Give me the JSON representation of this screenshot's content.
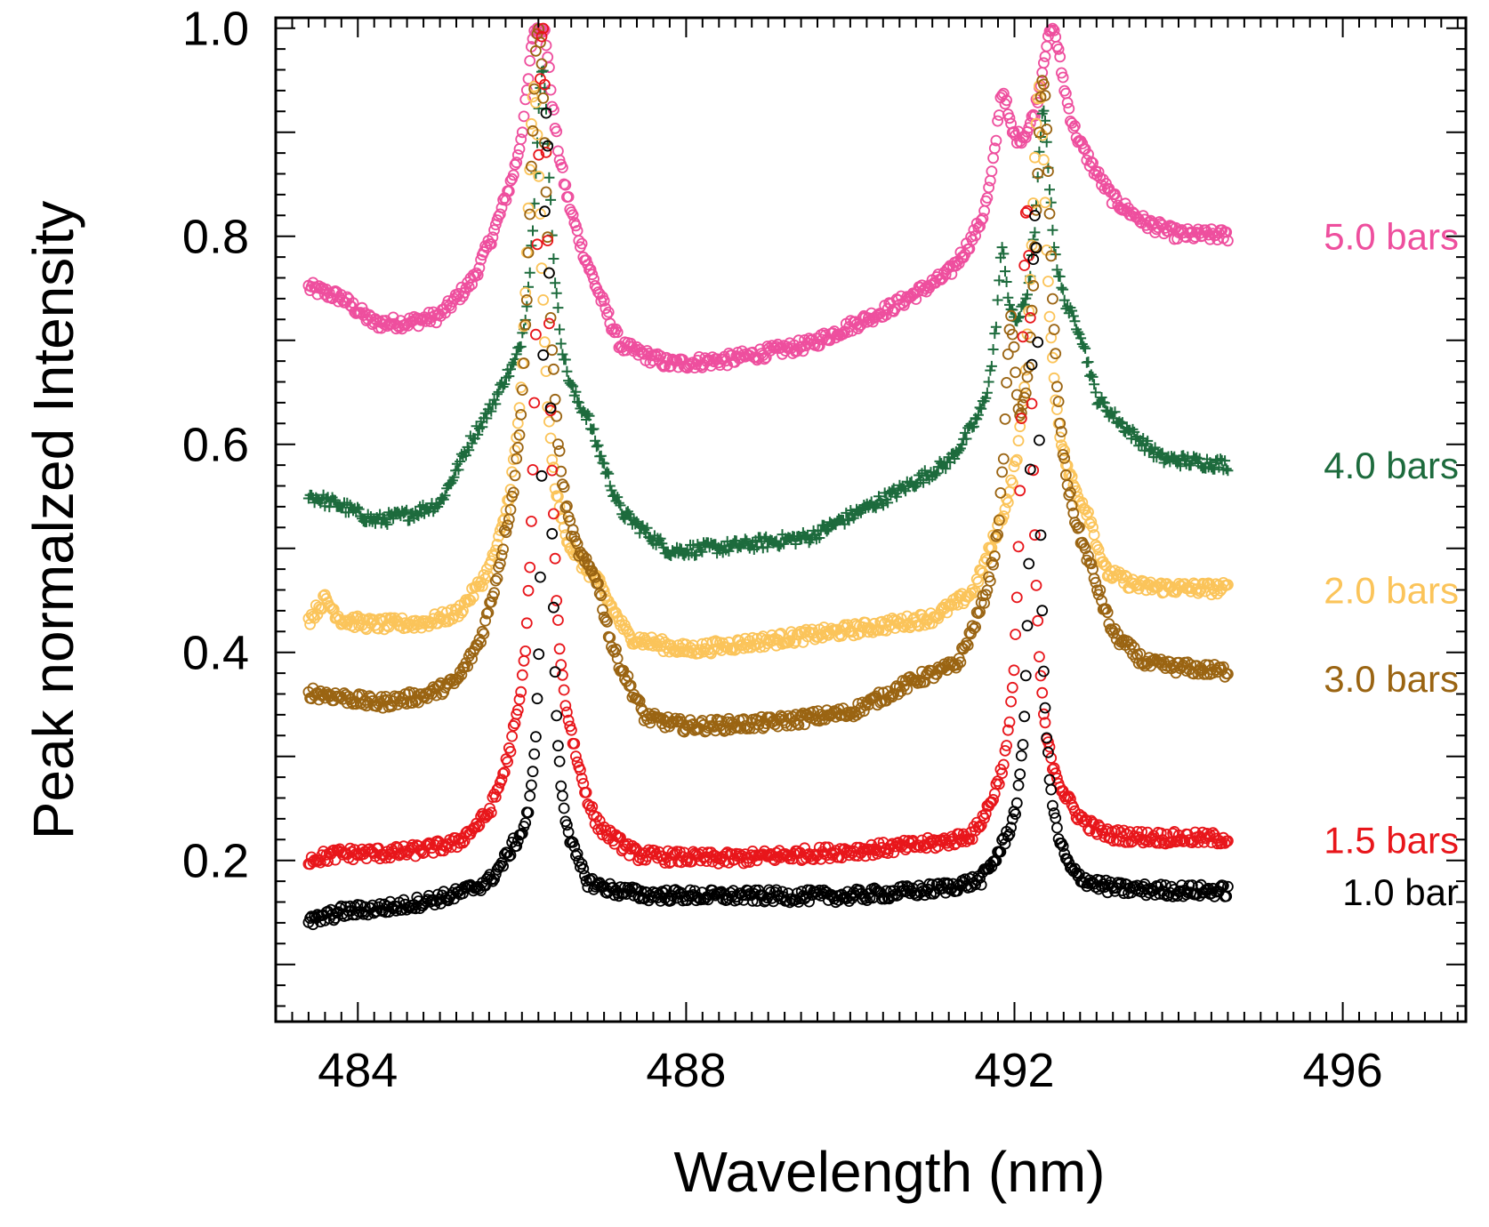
{
  "chart_data": {
    "type": "scatter",
    "title": "",
    "xlabel": "Wavelength (nm)",
    "ylabel": "Peak normalzed Intensity",
    "xlim": [
      483,
      497.5
    ],
    "ylim": [
      0.045,
      1.01
    ],
    "xticks": [
      484,
      488,
      492,
      496
    ],
    "xtick_labels": [
      "484",
      "488",
      "492",
      "496"
    ],
    "yticks": [
      0.2,
      0.4,
      0.6,
      0.8,
      1.0
    ],
    "ytick_labels": [
      "0.2",
      "0.4",
      "0.6",
      "0.8",
      "1.0"
    ],
    "grid": false,
    "series": [
      {
        "name": "5.0 bars",
        "color": "#ee4f9e",
        "marker": "circle",
        "x_start": 483.4,
        "x_end": 494.6,
        "baseline": [
          [
            483.4,
            0.75
          ],
          [
            483.8,
            0.74
          ],
          [
            484.2,
            0.715
          ],
          [
            484.6,
            0.715
          ],
          [
            485.0,
            0.72
          ],
          [
            485.4,
            0.75
          ],
          [
            485.8,
            0.81
          ],
          [
            486.3,
            0.85
          ],
          [
            486.8,
            0.76
          ],
          [
            487.2,
            0.69
          ],
          [
            487.8,
            0.675
          ],
          [
            488.5,
            0.68
          ],
          [
            489.5,
            0.695
          ],
          [
            490.5,
            0.73
          ],
          [
            491.2,
            0.76
          ],
          [
            491.6,
            0.8
          ],
          [
            491.85,
            0.84
          ],
          [
            492.05,
            0.86
          ],
          [
            492.3,
            0.87
          ],
          [
            492.6,
            0.88
          ],
          [
            492.9,
            0.86
          ],
          [
            493.2,
            0.83
          ],
          [
            493.6,
            0.81
          ],
          [
            494.0,
            0.8
          ],
          [
            494.6,
            0.8
          ]
        ],
        "peaks": [
          {
            "center": 486.2,
            "amp": 0.18,
            "width": 0.17
          },
          {
            "center": 491.85,
            "amp": 0.09,
            "width": 0.1
          },
          {
            "center": 492.45,
            "amp": 0.125,
            "width": 0.16
          }
        ],
        "label": "5.0 bars",
        "label_y": 0.8
      },
      {
        "name": "4.0 bars",
        "color": "#1d6b3d",
        "marker": "plus",
        "x_start": 483.4,
        "x_end": 494.6,
        "baseline": [
          [
            483.4,
            0.55
          ],
          [
            483.8,
            0.54
          ],
          [
            484.2,
            0.525
          ],
          [
            484.6,
            0.53
          ],
          [
            485.0,
            0.54
          ],
          [
            485.4,
            0.6
          ],
          [
            485.8,
            0.64
          ],
          [
            486.8,
            0.61
          ],
          [
            487.2,
            0.53
          ],
          [
            487.8,
            0.495
          ],
          [
            488.5,
            0.5
          ],
          [
            489.5,
            0.51
          ],
          [
            490.5,
            0.55
          ],
          [
            491.2,
            0.58
          ],
          [
            491.6,
            0.62
          ],
          [
            492.0,
            0.68
          ],
          [
            492.4,
            0.73
          ],
          [
            492.8,
            0.7
          ],
          [
            493.0,
            0.64
          ],
          [
            493.4,
            0.61
          ],
          [
            493.8,
            0.585
          ],
          [
            494.6,
            0.58
          ]
        ],
        "peaks": [
          {
            "center": 486.25,
            "amp": 0.33,
            "width": 0.13
          },
          {
            "center": 491.85,
            "amp": 0.12,
            "width": 0.08
          },
          {
            "center": 492.35,
            "amp": 0.19,
            "width": 0.1
          }
        ],
        "label": "4.0 bars",
        "label_y": 0.58
      },
      {
        "name": "2.0 bars",
        "color": "#fbc45a",
        "marker": "circle",
        "x_start": 483.4,
        "x_end": 494.6,
        "baseline": [
          [
            483.4,
            0.43
          ],
          [
            483.6,
            0.45
          ],
          [
            483.8,
            0.43
          ],
          [
            484.2,
            0.425
          ],
          [
            484.8,
            0.425
          ],
          [
            485.2,
            0.43
          ],
          [
            485.6,
            0.46
          ],
          [
            485.9,
            0.5
          ],
          [
            486.9,
            0.46
          ],
          [
            487.3,
            0.41
          ],
          [
            488.0,
            0.4
          ],
          [
            489.0,
            0.41
          ],
          [
            490.0,
            0.42
          ],
          [
            491.0,
            0.43
          ],
          [
            491.5,
            0.45
          ],
          [
            491.8,
            0.5
          ],
          [
            492.3,
            0.56
          ],
          [
            492.9,
            0.52
          ],
          [
            493.1,
            0.47
          ],
          [
            493.5,
            0.46
          ],
          [
            494.6,
            0.46
          ]
        ],
        "peaks": [
          {
            "center": 486.15,
            "amp": 0.45,
            "width": 0.12
          },
          {
            "center": 492.3,
            "amp": 0.38,
            "width": 0.12
          }
        ],
        "label": "2.0 bars",
        "label_y": 0.46
      },
      {
        "name": "3.0 bars",
        "color": "#9a6412",
        "marker": "circle",
        "x_start": 483.4,
        "x_end": 494.6,
        "baseline": [
          [
            483.4,
            0.36
          ],
          [
            483.8,
            0.355
          ],
          [
            484.2,
            0.348
          ],
          [
            484.8,
            0.352
          ],
          [
            485.2,
            0.36
          ],
          [
            485.5,
            0.39
          ],
          [
            485.8,
            0.45
          ],
          [
            486.9,
            0.45
          ],
          [
            487.1,
            0.39
          ],
          [
            487.5,
            0.33
          ],
          [
            488.0,
            0.325
          ],
          [
            489.0,
            0.33
          ],
          [
            490.0,
            0.34
          ],
          [
            490.8,
            0.37
          ],
          [
            491.3,
            0.38
          ],
          [
            491.7,
            0.44
          ],
          [
            492.3,
            0.55
          ],
          [
            492.9,
            0.47
          ],
          [
            493.2,
            0.41
          ],
          [
            493.6,
            0.385
          ],
          [
            494.6,
            0.38
          ]
        ],
        "peaks": [
          {
            "center": 486.2,
            "amp": 0.55,
            "width": 0.15
          },
          {
            "center": 491.95,
            "amp": 0.2,
            "width": 0.08
          },
          {
            "center": 492.35,
            "amp": 0.4,
            "width": 0.12
          }
        ],
        "label": "3.0 bars",
        "label_y": 0.375
      },
      {
        "name": "1.5 bars",
        "color": "#e8161b",
        "marker": "circle",
        "x_start": 483.4,
        "x_end": 494.6,
        "baseline": [
          [
            483.4,
            0.2
          ],
          [
            483.8,
            0.205
          ],
          [
            484.5,
            0.205
          ],
          [
            485.2,
            0.21
          ],
          [
            485.6,
            0.23
          ],
          [
            485.9,
            0.27
          ],
          [
            486.6,
            0.27
          ],
          [
            486.9,
            0.22
          ],
          [
            487.4,
            0.2
          ],
          [
            488.5,
            0.2
          ],
          [
            489.5,
            0.205
          ],
          [
            490.5,
            0.21
          ],
          [
            491.5,
            0.215
          ],
          [
            491.8,
            0.24
          ],
          [
            492.5,
            0.25
          ],
          [
            492.8,
            0.23
          ],
          [
            493.1,
            0.22
          ],
          [
            494.6,
            0.22
          ]
        ],
        "peaks": [
          {
            "center": 486.25,
            "amp": 0.73,
            "width": 0.1
          },
          {
            "center": 492.15,
            "amp": 0.58,
            "width": 0.09
          }
        ],
        "label": "1.5 bars",
        "label_y": 0.22
      },
      {
        "name": "1.0 bar",
        "color": "#000000",
        "marker": "circle",
        "x_start": 483.4,
        "x_end": 494.6,
        "baseline": [
          [
            483.4,
            0.14
          ],
          [
            483.8,
            0.15
          ],
          [
            484.5,
            0.155
          ],
          [
            485.2,
            0.165
          ],
          [
            485.6,
            0.175
          ],
          [
            485.9,
            0.2
          ],
          [
            486.5,
            0.2
          ],
          [
            486.8,
            0.17
          ],
          [
            487.5,
            0.165
          ],
          [
            488.5,
            0.165
          ],
          [
            490.0,
            0.165
          ],
          [
            491.0,
            0.17
          ],
          [
            491.6,
            0.175
          ],
          [
            491.9,
            0.2
          ],
          [
            492.4,
            0.2
          ],
          [
            492.7,
            0.175
          ],
          [
            493.2,
            0.17
          ],
          [
            494.6,
            0.17
          ]
        ],
        "peaks": [
          {
            "center": 486.3,
            "amp": 0.72,
            "width": 0.06
          },
          {
            "center": 492.25,
            "amp": 0.62,
            "width": 0.07
          }
        ],
        "label": "1.0 bar",
        "label_y": 0.17
      }
    ]
  }
}
